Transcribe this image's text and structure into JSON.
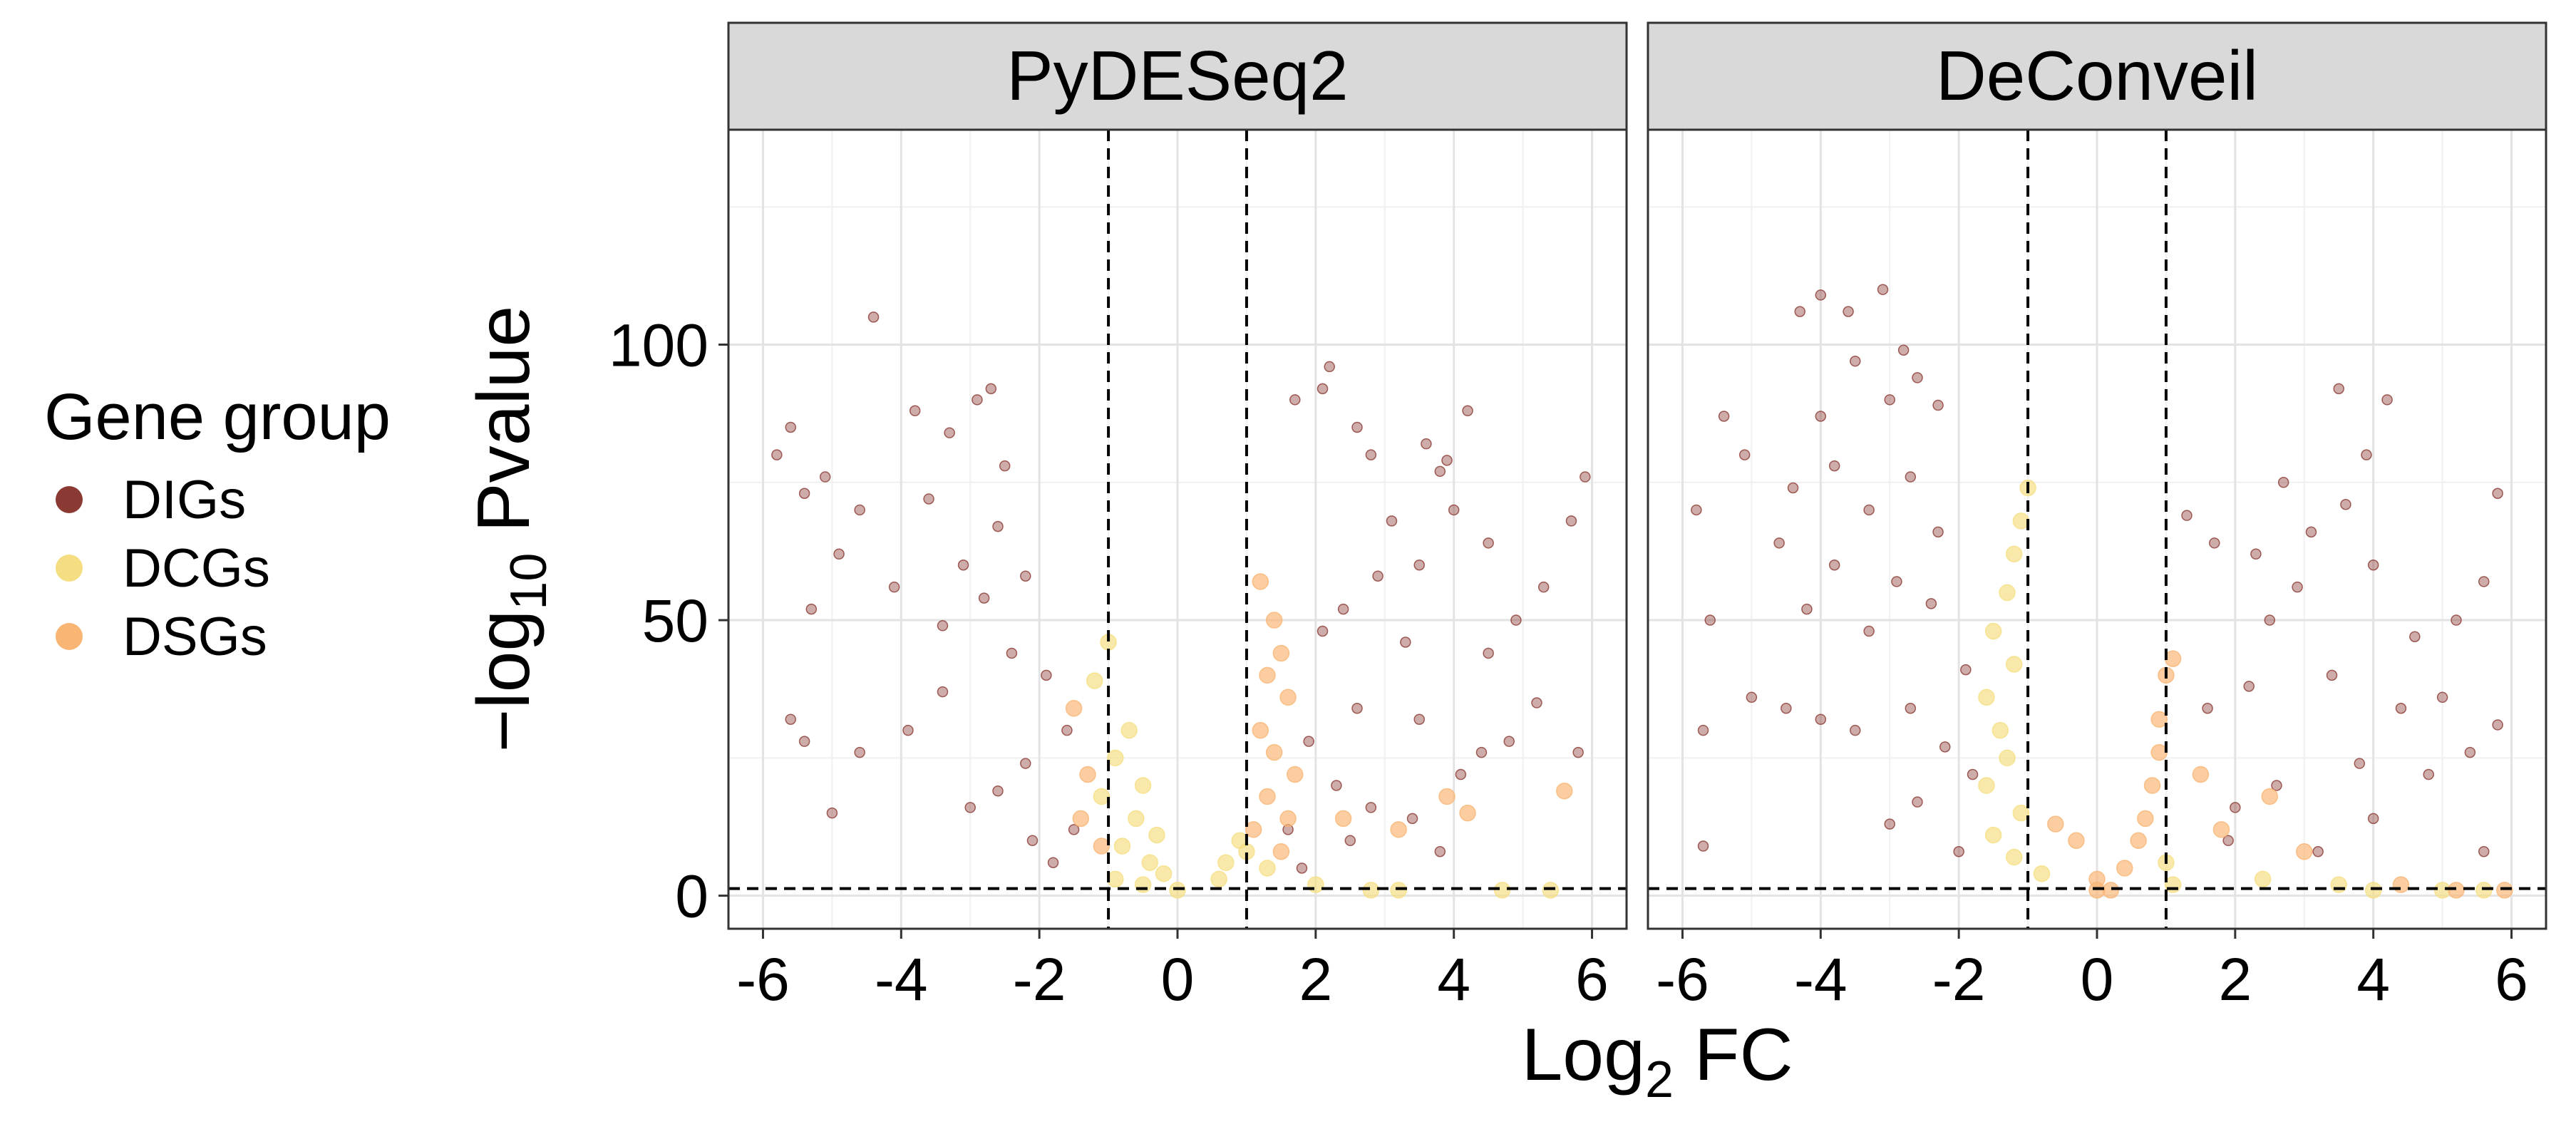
{
  "chart_data": {
    "type": "scatter",
    "x_label": {
      "base": "Log",
      "sub": "2",
      "tail": " FC"
    },
    "y_label": {
      "prefix": "−log",
      "sub": "10",
      "tail": " Pvalue"
    },
    "xlim": [
      -6.5,
      6.5
    ],
    "ylim": [
      -6,
      139
    ],
    "x_ticks": [
      -6,
      -4,
      -2,
      0,
      2,
      4,
      6
    ],
    "x_tick_labels": [
      "-6",
      "-4",
      "-2",
      "0",
      "2",
      "4",
      "6"
    ],
    "y_ticks": [
      0,
      50,
      100
    ],
    "y_tick_labels": [
      "0",
      "50",
      "100"
    ],
    "vlines": [
      -1,
      1
    ],
    "hline": 1.3,
    "grid": true,
    "legend": {
      "title": "Gene group",
      "position": "left",
      "entries": [
        {
          "name": "DIGs",
          "color": "#8b3a33"
        },
        {
          "name": "DCGs",
          "color": "#f5de82"
        },
        {
          "name": "DSGs",
          "color": "#f9b574"
        }
      ]
    },
    "panels": [
      {
        "title": "PyDESeq2",
        "series": [
          {
            "name": "DIGs",
            "color": "#8b3a33",
            "points": [
              [
                -4.4,
                105
              ],
              [
                -2.7,
                92
              ],
              [
                -2.9,
                90
              ],
              [
                -5.6,
                85
              ],
              [
                -5.4,
                73
              ],
              [
                -5.8,
                80
              ],
              [
                -5.1,
                76
              ],
              [
                -3.8,
                88
              ],
              [
                -3.3,
                84
              ],
              [
                -2.5,
                78
              ],
              [
                -4.6,
                70
              ],
              [
                -3.6,
                72
              ],
              [
                -2.6,
                67
              ],
              [
                -4.9,
                62
              ],
              [
                -3.1,
                60
              ],
              [
                -2.2,
                58
              ],
              [
                -5.3,
                52
              ],
              [
                -4.1,
                56
              ],
              [
                -3.4,
                49
              ],
              [
                -2.8,
                54
              ],
              [
                -5.6,
                32
              ],
              [
                -5.4,
                28
              ],
              [
                -4.6,
                26
              ],
              [
                -3.9,
                30
              ],
              [
                -3.4,
                37
              ],
              [
                -2.4,
                44
              ],
              [
                -1.9,
                40
              ],
              [
                -2.2,
                24
              ],
              [
                -1.6,
                30
              ],
              [
                -2.6,
                19
              ],
              [
                -3.0,
                16
              ],
              [
                -5.0,
                15
              ],
              [
                -1.5,
                12
              ],
              [
                -2.1,
                10
              ],
              [
                -1.8,
                6
              ],
              [
                2.2,
                96
              ],
              [
                2.1,
                92
              ],
              [
                1.7,
                90
              ],
              [
                2.6,
                85
              ],
              [
                3.9,
                79
              ],
              [
                3.6,
                82
              ],
              [
                4.0,
                70
              ],
              [
                4.2,
                88
              ],
              [
                3.8,
                77
              ],
              [
                2.8,
                80
              ],
              [
                3.1,
                68
              ],
              [
                3.5,
                60
              ],
              [
                2.9,
                58
              ],
              [
                2.4,
                52
              ],
              [
                4.5,
                64
              ],
              [
                5.9,
                76
              ],
              [
                5.7,
                68
              ],
              [
                5.3,
                56
              ],
              [
                4.9,
                50
              ],
              [
                4.5,
                44
              ],
              [
                3.3,
                46
              ],
              [
                2.1,
                48
              ],
              [
                5.2,
                35
              ],
              [
                4.8,
                28
              ],
              [
                5.8,
                26
              ],
              [
                4.4,
                26
              ],
              [
                3.5,
                32
              ],
              [
                2.6,
                34
              ],
              [
                1.9,
                28
              ],
              [
                2.3,
                20
              ],
              [
                2.8,
                16
              ],
              [
                3.4,
                14
              ],
              [
                4.1,
                22
              ],
              [
                3.8,
                8
              ],
              [
                2.5,
                10
              ],
              [
                1.6,
                12
              ],
              [
                1.8,
                5
              ]
            ]
          },
          {
            "name": "DCGs",
            "color": "#f5de82",
            "points": [
              [
                -1.0,
                46
              ],
              [
                -1.2,
                39
              ],
              [
                -0.7,
                30
              ],
              [
                -0.9,
                25
              ],
              [
                -0.5,
                20
              ],
              [
                -1.1,
                18
              ],
              [
                -0.6,
                14
              ],
              [
                -0.3,
                11
              ],
              [
                -0.8,
                9
              ],
              [
                -0.4,
                6
              ],
              [
                -0.2,
                4
              ],
              [
                -0.9,
                3
              ],
              [
                -0.5,
                2
              ],
              [
                0.0,
                1
              ],
              [
                0.9,
                10
              ],
              [
                0.7,
                6
              ],
              [
                0.6,
                3
              ],
              [
                1.0,
                8
              ],
              [
                1.3,
                5
              ],
              [
                2.0,
                2
              ],
              [
                2.8,
                1
              ],
              [
                3.2,
                1
              ],
              [
                4.7,
                1
              ],
              [
                5.4,
                1
              ]
            ]
          },
          {
            "name": "DSGs",
            "color": "#f9b574",
            "points": [
              [
                -1.5,
                34
              ],
              [
                -1.3,
                22
              ],
              [
                -1.4,
                14
              ],
              [
                -1.1,
                9
              ],
              [
                1.2,
                57
              ],
              [
                1.4,
                50
              ],
              [
                1.5,
                44
              ],
              [
                1.3,
                40
              ],
              [
                1.6,
                36
              ],
              [
                1.2,
                30
              ],
              [
                1.4,
                26
              ],
              [
                1.7,
                22
              ],
              [
                1.3,
                18
              ],
              [
                1.6,
                14
              ],
              [
                1.1,
                12
              ],
              [
                1.5,
                8
              ],
              [
                2.4,
                14
              ],
              [
                3.9,
                18
              ],
              [
                5.6,
                19
              ],
              [
                4.2,
                15
              ],
              [
                3.2,
                12
              ]
            ]
          }
        ]
      },
      {
        "title": "DeConveil",
        "series": [
          {
            "name": "DIGs",
            "color": "#8b3a33",
            "points": [
              [
                -4.0,
                109
              ],
              [
                -3.1,
                110
              ],
              [
                -3.6,
                106
              ],
              [
                -2.8,
                99
              ],
              [
                -2.6,
                94
              ],
              [
                -3.5,
                97
              ],
              [
                -4.3,
                106
              ],
              [
                -3.0,
                90
              ],
              [
                -2.3,
                89
              ],
              [
                -5.4,
                87
              ],
              [
                -5.1,
                80
              ],
              [
                -4.0,
                87
              ],
              [
                -5.8,
                70
              ],
              [
                -4.4,
                74
              ],
              [
                -3.8,
                78
              ],
              [
                -2.7,
                76
              ],
              [
                -3.3,
                70
              ],
              [
                -4.6,
                64
              ],
              [
                -2.3,
                66
              ],
              [
                -3.8,
                60
              ],
              [
                -2.9,
                57
              ],
              [
                -4.2,
                52
              ],
              [
                -5.6,
                50
              ],
              [
                -3.3,
                48
              ],
              [
                -2.4,
                53
              ],
              [
                -5.0,
                36
              ],
              [
                -4.5,
                34
              ],
              [
                -5.7,
                30
              ],
              [
                -4.0,
                32
              ],
              [
                -3.5,
                30
              ],
              [
                -2.7,
                34
              ],
              [
                -1.9,
                41
              ],
              [
                -2.2,
                27
              ],
              [
                -1.8,
                22
              ],
              [
                -2.6,
                17
              ],
              [
                -3.0,
                13
              ],
              [
                -5.7,
                9
              ],
              [
                -2.0,
                8
              ],
              [
                3.5,
                92
              ],
              [
                4.2,
                90
              ],
              [
                3.9,
                80
              ],
              [
                2.7,
                75
              ],
              [
                1.3,
                69
              ],
              [
                1.7,
                64
              ],
              [
                2.3,
                62
              ],
              [
                3.1,
                66
              ],
              [
                3.6,
                71
              ],
              [
                4.0,
                60
              ],
              [
                2.9,
                56
              ],
              [
                2.5,
                50
              ],
              [
                5.8,
                73
              ],
              [
                5.6,
                57
              ],
              [
                5.2,
                50
              ],
              [
                4.6,
                47
              ],
              [
                5.0,
                36
              ],
              [
                4.4,
                34
              ],
              [
                3.4,
                40
              ],
              [
                2.2,
                38
              ],
              [
                1.6,
                34
              ],
              [
                5.8,
                31
              ],
              [
                5.4,
                26
              ],
              [
                4.8,
                22
              ],
              [
                3.8,
                24
              ],
              [
                2.6,
                20
              ],
              [
                2.0,
                16
              ],
              [
                1.9,
                10
              ],
              [
                3.2,
                8
              ],
              [
                4.0,
                14
              ],
              [
                5.6,
                8
              ]
            ]
          },
          {
            "name": "DCGs",
            "color": "#f5de82",
            "points": [
              [
                -1.0,
                74
              ],
              [
                -1.1,
                68
              ],
              [
                -1.2,
                62
              ],
              [
                -1.3,
                55
              ],
              [
                -1.5,
                48
              ],
              [
                -1.2,
                42
              ],
              [
                -1.6,
                36
              ],
              [
                -1.4,
                30
              ],
              [
                -1.3,
                25
              ],
              [
                -1.6,
                20
              ],
              [
                -1.1,
                15
              ],
              [
                -1.5,
                11
              ],
              [
                -1.2,
                7
              ],
              [
                -0.8,
                4
              ],
              [
                1.0,
                6
              ],
              [
                1.1,
                2
              ],
              [
                2.4,
                3
              ],
              [
                3.5,
                2
              ],
              [
                4.0,
                1
              ],
              [
                5.0,
                1
              ],
              [
                5.6,
                1
              ]
            ]
          },
          {
            "name": "DSGs",
            "color": "#f9b574",
            "points": [
              [
                -0.6,
                13
              ],
              [
                -0.3,
                10
              ],
              [
                0.0,
                3
              ],
              [
                0.0,
                1
              ],
              [
                0.2,
                1
              ],
              [
                0.4,
                5
              ],
              [
                0.6,
                10
              ],
              [
                0.7,
                14
              ],
              [
                0.8,
                20
              ],
              [
                0.9,
                26
              ],
              [
                0.9,
                32
              ],
              [
                1.0,
                40
              ],
              [
                1.1,
                43
              ],
              [
                1.5,
                22
              ],
              [
                2.5,
                18
              ],
              [
                1.8,
                12
              ],
              [
                3.0,
                8
              ],
              [
                4.4,
                2
              ],
              [
                5.2,
                1
              ],
              [
                5.9,
                1
              ]
            ]
          }
        ]
      }
    ]
  }
}
